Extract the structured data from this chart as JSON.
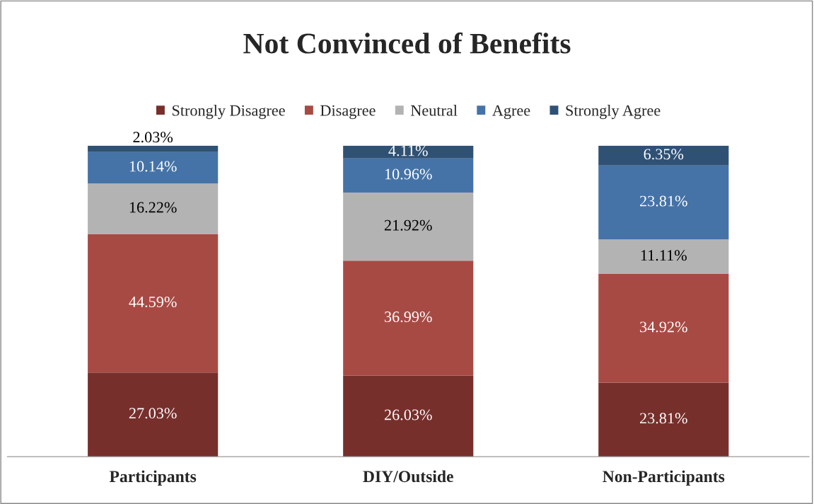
{
  "chart_data": {
    "type": "bar",
    "title": "Not Convinced of Benefits",
    "stacked": true,
    "tick_labels": "x",
    "legend": "top",
    "grid": false,
    "categories": [
      "Participants",
      "DIY/Outside",
      "Non-Participants"
    ],
    "series": [
      {
        "name": "Strongly Disagree",
        "color": "#772f2c",
        "values": [
          27.03,
          26.03,
          23.81
        ],
        "value_labels": [
          "27.03%",
          "26.03%",
          "23.81%"
        ]
      },
      {
        "name": "Disagree",
        "color": "#a84a44",
        "values": [
          44.59,
          36.99,
          34.92
        ],
        "value_labels": [
          "44.59%",
          "36.99%",
          "34.92%"
        ]
      },
      {
        "name": "Neutral",
        "color": "#b3b3b3",
        "values": [
          16.22,
          21.92,
          11.11
        ],
        "value_labels": [
          "16.22%",
          "21.92%",
          "11.11%"
        ]
      },
      {
        "name": "Agree",
        "color": "#4573a7",
        "values": [
          10.14,
          10.96,
          23.81
        ],
        "value_labels": [
          "10.14%",
          "10.96%",
          "23.81%"
        ]
      },
      {
        "name": "Strongly Agree",
        "color": "#2f5174",
        "values": [
          2.03,
          4.11,
          6.35
        ],
        "value_labels": [
          "2.03%",
          "4.11%",
          "6.35%"
        ]
      }
    ]
  }
}
